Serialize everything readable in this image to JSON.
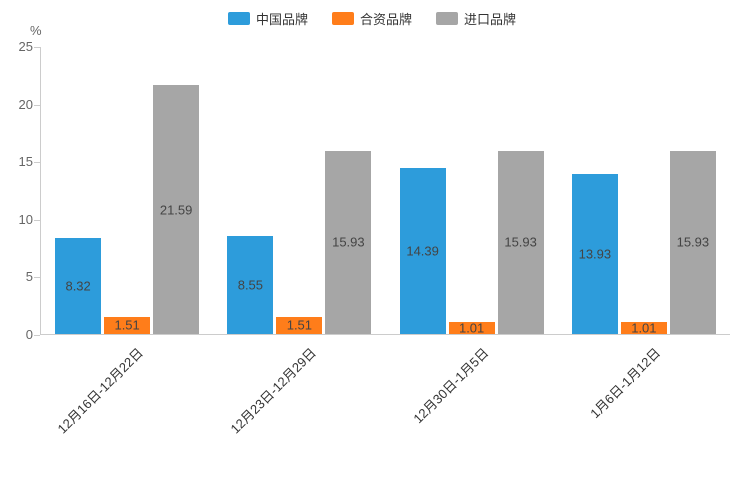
{
  "chart_data": {
    "type": "bar",
    "title": "",
    "categories": [
      "12月16日-12月22日",
      "12月23日-12月29日",
      "12月30日-1月5日",
      "1月6日-1月12日"
    ],
    "series": [
      {
        "id": "china-brand",
        "name": "中国品牌",
        "color": "#2D9CDB",
        "values": [
          8.32,
          8.55,
          14.39,
          13.93
        ]
      },
      {
        "id": "joint-venture-brand",
        "name": "合资品牌",
        "color": "#FF7D1A",
        "values": [
          1.51,
          1.51,
          1.01,
          1.01
        ]
      },
      {
        "id": "import-brand",
        "name": "进口品牌",
        "color": "#A6A6A6",
        "values": [
          21.59,
          15.93,
          15.93,
          15.93
        ]
      }
    ],
    "xlabel": "",
    "ylabel": "%",
    "ylim": [
      0,
      25
    ],
    "yticks": [
      0,
      5,
      10,
      15,
      20,
      25
    ],
    "grid": false,
    "legend_position": "top",
    "value_labels": "inside",
    "xlabel_rotation": -45
  }
}
